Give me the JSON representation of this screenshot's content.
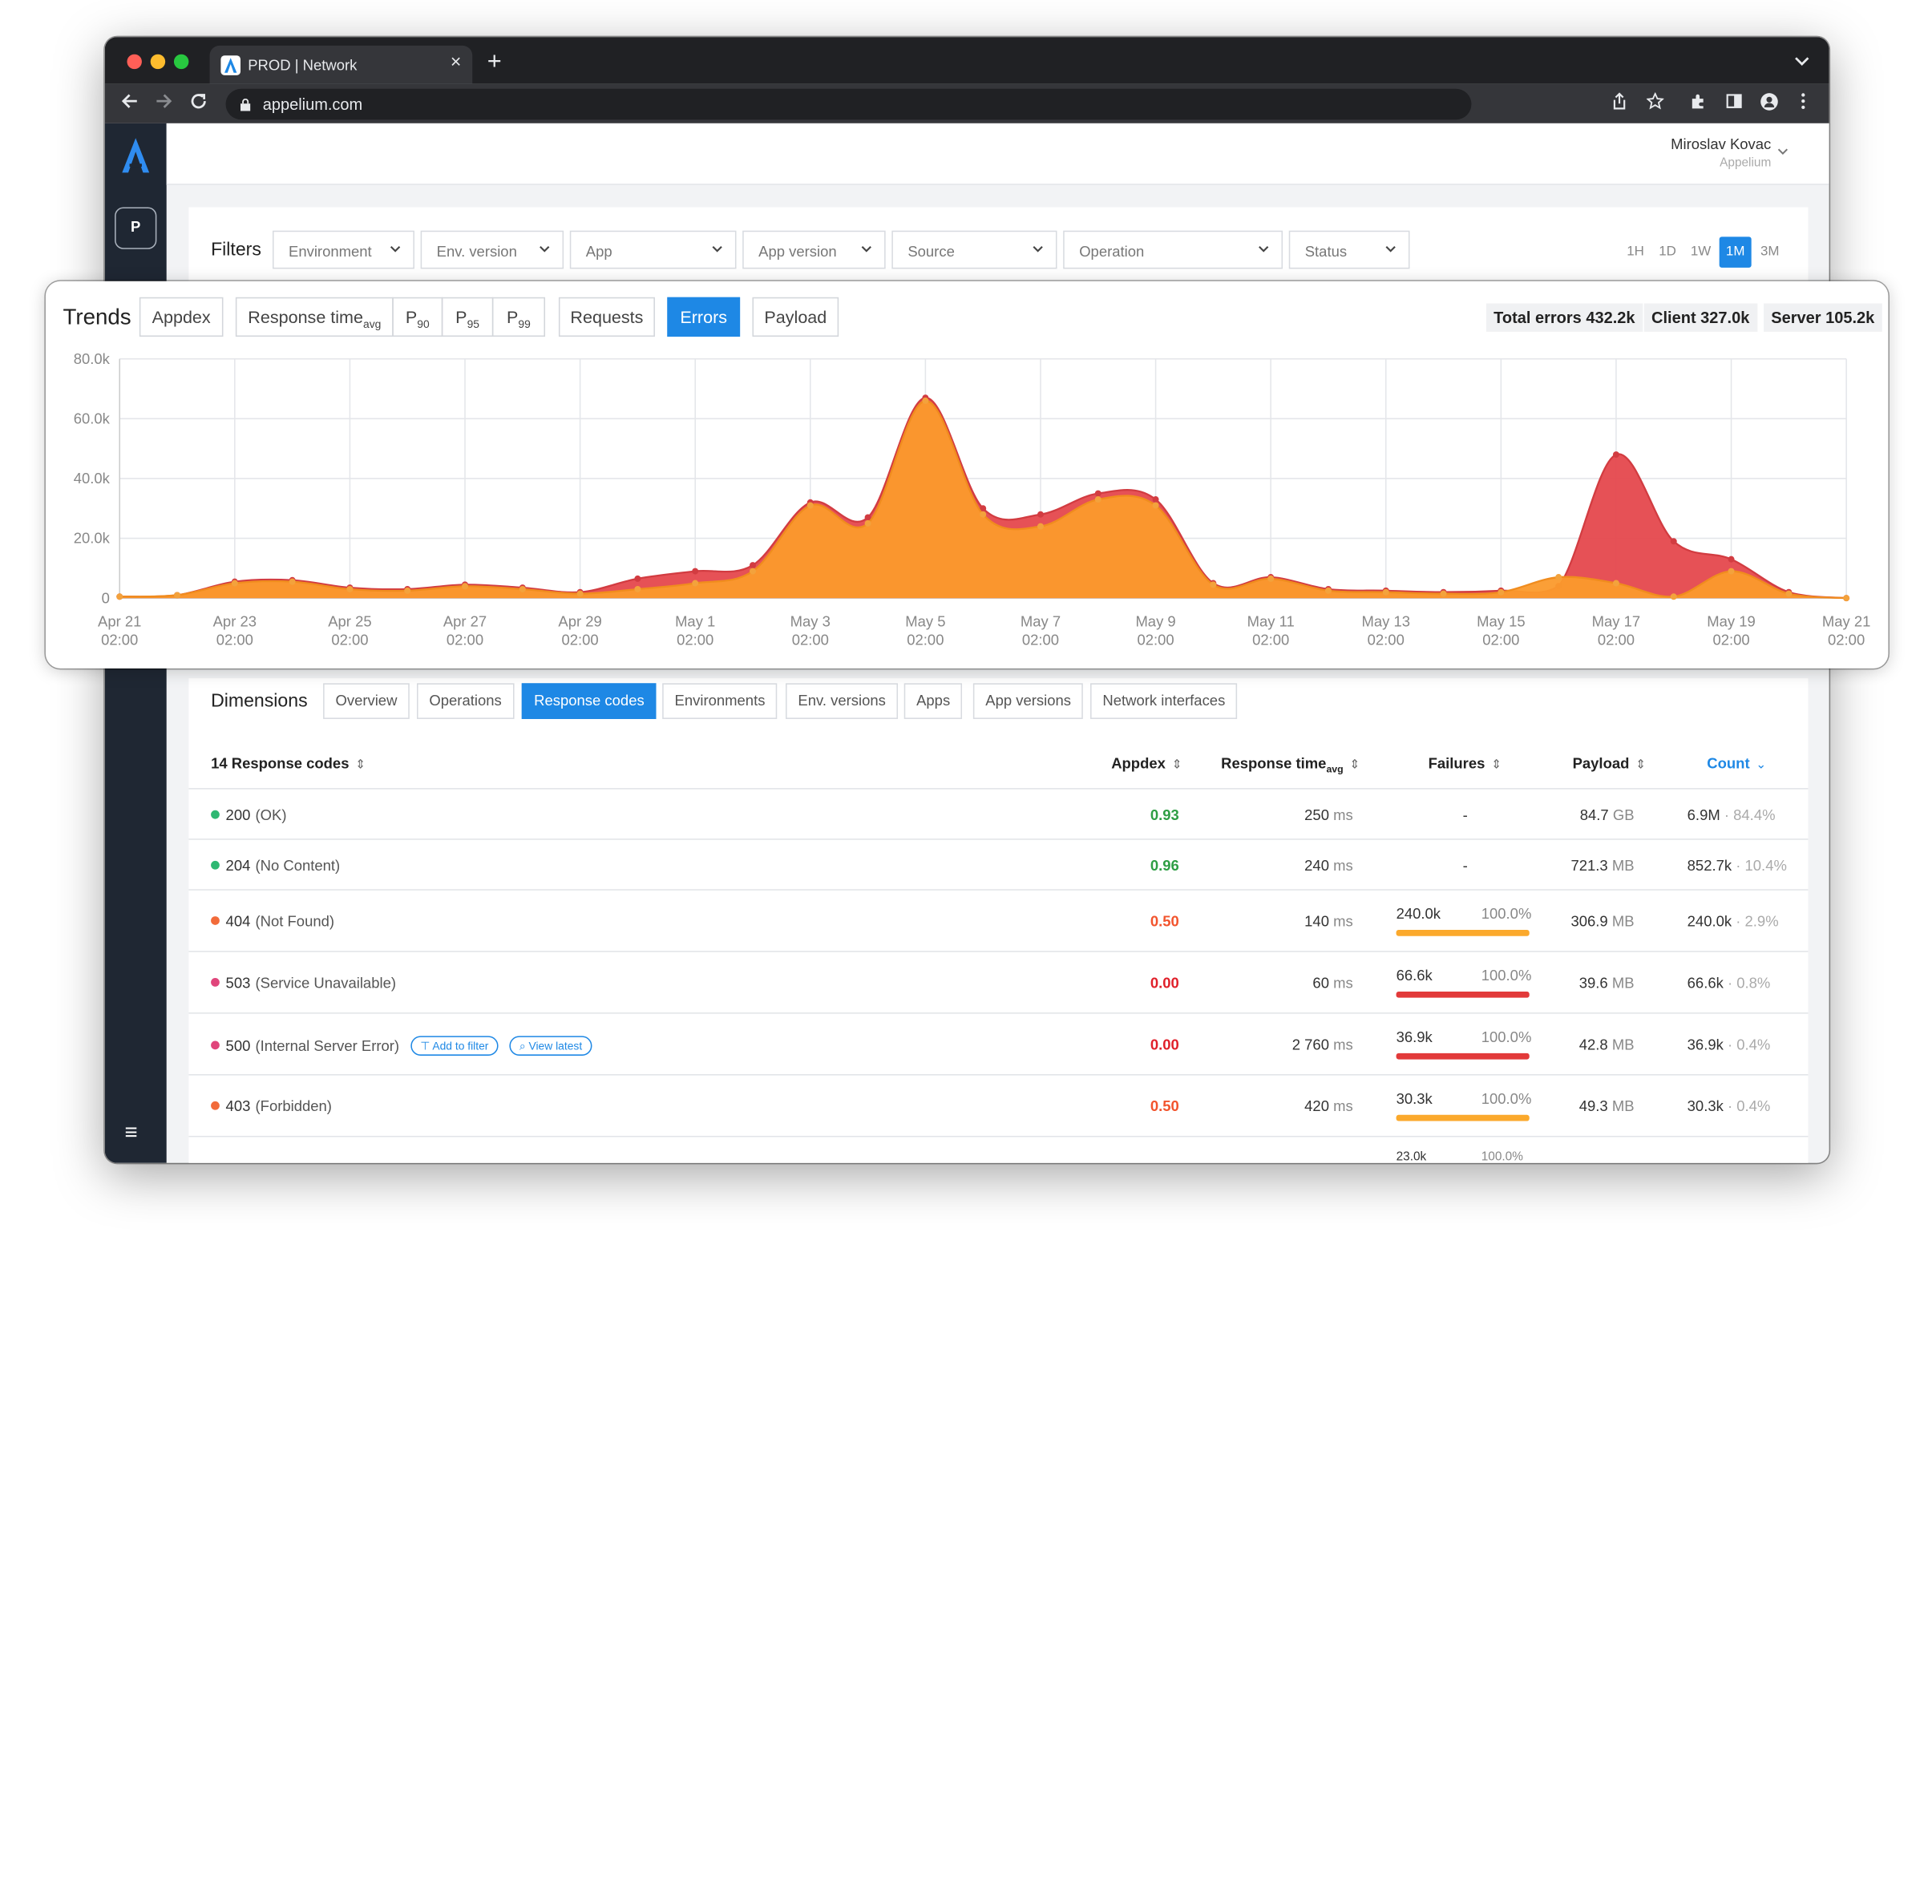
{
  "browser": {
    "tab_title": "PROD | Network",
    "url": "appelium.com",
    "new_tab_glyph": "+",
    "close_tab_glyph": "×"
  },
  "sidebar": {
    "project_badge": "P",
    "menu_glyph": "≡"
  },
  "header": {
    "user_name": "Miroslav Kovac",
    "org_name": "Appelium"
  },
  "filters": {
    "label": "Filters",
    "selects": [
      "Environment",
      "Env. version",
      "App",
      "App version",
      "Source",
      "Operation",
      "Status"
    ],
    "ranges": [
      "1H",
      "1D",
      "1W",
      "1M",
      "3M"
    ],
    "active_range": "1M"
  },
  "trends": {
    "label": "Trends",
    "metrics": {
      "appdex": "Appdex",
      "response_time": "Response time",
      "response_time_sub": "avg",
      "p90": "P",
      "p90_sub": "90",
      "p95": "P",
      "p95_sub": "95",
      "p99": "P",
      "p99_sub": "99",
      "requests": "Requests",
      "errors": "Errors",
      "payload": "Payload"
    },
    "active_metric": "Errors",
    "stats": {
      "total": "Total errors 432.2k",
      "client": "Client 327.0k",
      "server": "Server 105.2k"
    }
  },
  "chart_data": {
    "type": "area",
    "title": "",
    "xlabel": "",
    "ylabel": "",
    "ylim": [
      0,
      80000
    ],
    "yticks": [
      "0",
      "20.0k",
      "40.0k",
      "60.0k",
      "80.0k"
    ],
    "x_tick_labels": [
      [
        "Apr 21",
        "02:00"
      ],
      [
        "Apr 23",
        "02:00"
      ],
      [
        "Apr 25",
        "02:00"
      ],
      [
        "Apr 27",
        "02:00"
      ],
      [
        "Apr 29",
        "02:00"
      ],
      [
        "May 1",
        "02:00"
      ],
      [
        "May 3",
        "02:00"
      ],
      [
        "May 5",
        "02:00"
      ],
      [
        "May 7",
        "02:00"
      ],
      [
        "May 9",
        "02:00"
      ],
      [
        "May 11",
        "02:00"
      ],
      [
        "May 13",
        "02:00"
      ],
      [
        "May 15",
        "02:00"
      ],
      [
        "May 17",
        "02:00"
      ],
      [
        "May 19",
        "02:00"
      ],
      [
        "May 21",
        "02:00"
      ]
    ],
    "x": [
      "Apr 21",
      "Apr 22",
      "Apr 23",
      "Apr 24",
      "Apr 25",
      "Apr 26",
      "Apr 27",
      "Apr 28",
      "Apr 29",
      "Apr 30",
      "May 1",
      "May 2",
      "May 3",
      "May 4",
      "May 5",
      "May 6",
      "May 7",
      "May 8",
      "May 9",
      "May 10",
      "May 11",
      "May 12",
      "May 13",
      "May 14",
      "May 15",
      "May 16",
      "May 17",
      "May 18",
      "May 19",
      "May 20",
      "May 21"
    ],
    "grid": true,
    "series": [
      {
        "color": "#e5484d",
        "values": [
          500,
          1000,
          5500,
          6000,
          3500,
          3000,
          4500,
          3500,
          2000,
          6500,
          9000,
          11000,
          32000,
          27000,
          67000,
          30000,
          28000,
          35000,
          33000,
          5000,
          7000,
          3000,
          2500,
          2000,
          2500,
          4000,
          48000,
          19000,
          13000,
          2000,
          0
        ]
      },
      {
        "color": "#fb9a2c",
        "values": [
          500,
          1000,
          5000,
          5500,
          3000,
          2500,
          4000,
          3000,
          1500,
          3000,
          5000,
          9000,
          31000,
          25000,
          66000,
          28000,
          24000,
          33000,
          31000,
          4500,
          6500,
          2500,
          2000,
          1500,
          2000,
          7000,
          5000,
          500,
          9000,
          1500,
          0
        ]
      }
    ]
  },
  "dimensions": {
    "label": "Dimensions",
    "tabs": [
      "Overview",
      "Operations",
      "Response codes",
      "Environments",
      "Env. versions",
      "Apps",
      "App versions",
      "Network interfaces"
    ],
    "active_tab": "Response codes",
    "columns": {
      "code": "14 Response codes",
      "appdex": "Appdex",
      "response_time": "Response time",
      "response_time_sub": "avg",
      "failures": "Failures",
      "payload": "Payload",
      "count": "Count"
    },
    "row_actions": {
      "add_to_filter": "Add to filter",
      "view_latest": "View latest"
    },
    "rows": [
      {
        "code": "200",
        "name": "(OK)",
        "dot_color": "#2eb872",
        "appdex": "0.93",
        "appdex_color": "#2e9e44",
        "rt": "250",
        "rt_unit": "ms",
        "failures": "-",
        "fail_pct": "",
        "bar_color": "",
        "payload": "84.7",
        "payload_unit": "GB",
        "count": "6.9M",
        "count_pct": "· 84.4%"
      },
      {
        "code": "204",
        "name": "(No Content)",
        "dot_color": "#2eb872",
        "appdex": "0.96",
        "appdex_color": "#2e9e44",
        "rt": "240",
        "rt_unit": "ms",
        "failures": "-",
        "fail_pct": "",
        "bar_color": "",
        "payload": "721.3",
        "payload_unit": "MB",
        "count": "852.7k",
        "count_pct": "· 10.4%"
      },
      {
        "code": "404",
        "name": "(Not Found)",
        "dot_color": "#f26b3a",
        "appdex": "0.50",
        "appdex_color": "#f2542d",
        "rt": "140",
        "rt_unit": "ms",
        "failures": "240.0k",
        "fail_pct": "100.0%",
        "bar_color": "#fba92c",
        "payload": "306.9",
        "payload_unit": "MB",
        "count": "240.0k",
        "count_pct": "· 2.9%"
      },
      {
        "code": "503",
        "name": "(Service Unavailable)",
        "dot_color": "#e0457b",
        "appdex": "0.00",
        "appdex_color": "#e0202a",
        "rt": "60",
        "rt_unit": "ms",
        "failures": "66.6k",
        "fail_pct": "100.0%",
        "bar_color": "#e23a3a",
        "payload": "39.6",
        "payload_unit": "MB",
        "count": "66.6k",
        "count_pct": "· 0.8%"
      },
      {
        "code": "500",
        "name": "(Internal Server Error)",
        "dot_color": "#e0457b",
        "appdex": "0.00",
        "appdex_color": "#e0202a",
        "rt": "2 760",
        "rt_unit": "ms",
        "failures": "36.9k",
        "fail_pct": "100.0%",
        "bar_color": "#e23a3a",
        "payload": "42.8",
        "payload_unit": "MB",
        "count": "36.9k",
        "count_pct": "· 0.4%"
      },
      {
        "code": "403",
        "name": "(Forbidden)",
        "dot_color": "#f26b3a",
        "appdex": "0.50",
        "appdex_color": "#f2542d",
        "rt": "420",
        "rt_unit": "ms",
        "failures": "30.3k",
        "fail_pct": "100.0%",
        "bar_color": "#fba92c",
        "payload": "49.3",
        "payload_unit": "MB",
        "count": "30.3k",
        "count_pct": "· 0.4%"
      }
    ],
    "partial_row": {
      "failures": "23.0k",
      "fail_pct": "100.0%"
    }
  },
  "colors": {
    "accent": "#1e88e5",
    "sidebar": "#1f2733",
    "browser_chrome": "#202124",
    "error_area": "#e5484d",
    "client_area": "#fb9a2c"
  }
}
